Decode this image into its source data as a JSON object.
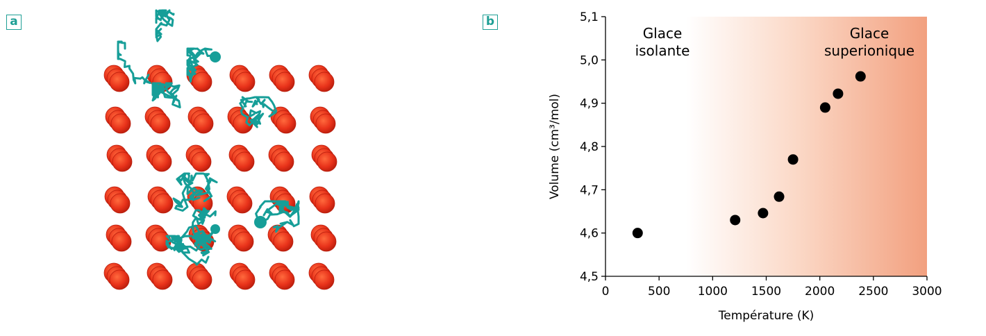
{
  "panels": {
    "a_label": "a",
    "b_label": "b"
  },
  "colors": {
    "oxygen": "#e8321a",
    "oxygen_dark": "#b81d0c",
    "trajectory": "#169e98",
    "gradient_end": "#f2a07f",
    "marker": "#000000"
  },
  "simulation": {
    "grid_rows": 6,
    "grid_cols": 6
  },
  "chart_data": {
    "type": "scatter",
    "xlabel": "Température (K)",
    "ylabel": "Volume (cm³/mol)",
    "xlim": [
      0,
      3000
    ],
    "ylim": [
      4.5,
      5.1
    ],
    "xticks": [
      "0",
      "500",
      "1000",
      "1500",
      "2000",
      "2500",
      "3000"
    ],
    "yticks": [
      "4,5",
      "4,6",
      "4,7",
      "4,8",
      "4,9",
      "5,0",
      "5,1"
    ],
    "points": [
      {
        "x": 300,
        "y": 4.6
      },
      {
        "x": 1210,
        "y": 4.63
      },
      {
        "x": 1470,
        "y": 4.646
      },
      {
        "x": 1620,
        "y": 4.684
      },
      {
        "x": 1750,
        "y": 4.77
      },
      {
        "x": 2050,
        "y": 4.89
      },
      {
        "x": 2170,
        "y": 4.922
      },
      {
        "x": 2380,
        "y": 4.962
      }
    ],
    "annotations": [
      {
        "line1": "Glace",
        "line2": "isolante"
      },
      {
        "line1": "Glace",
        "line2": "superionique"
      }
    ],
    "grid": false,
    "background": "gradient white to orange increasing with temperature"
  }
}
